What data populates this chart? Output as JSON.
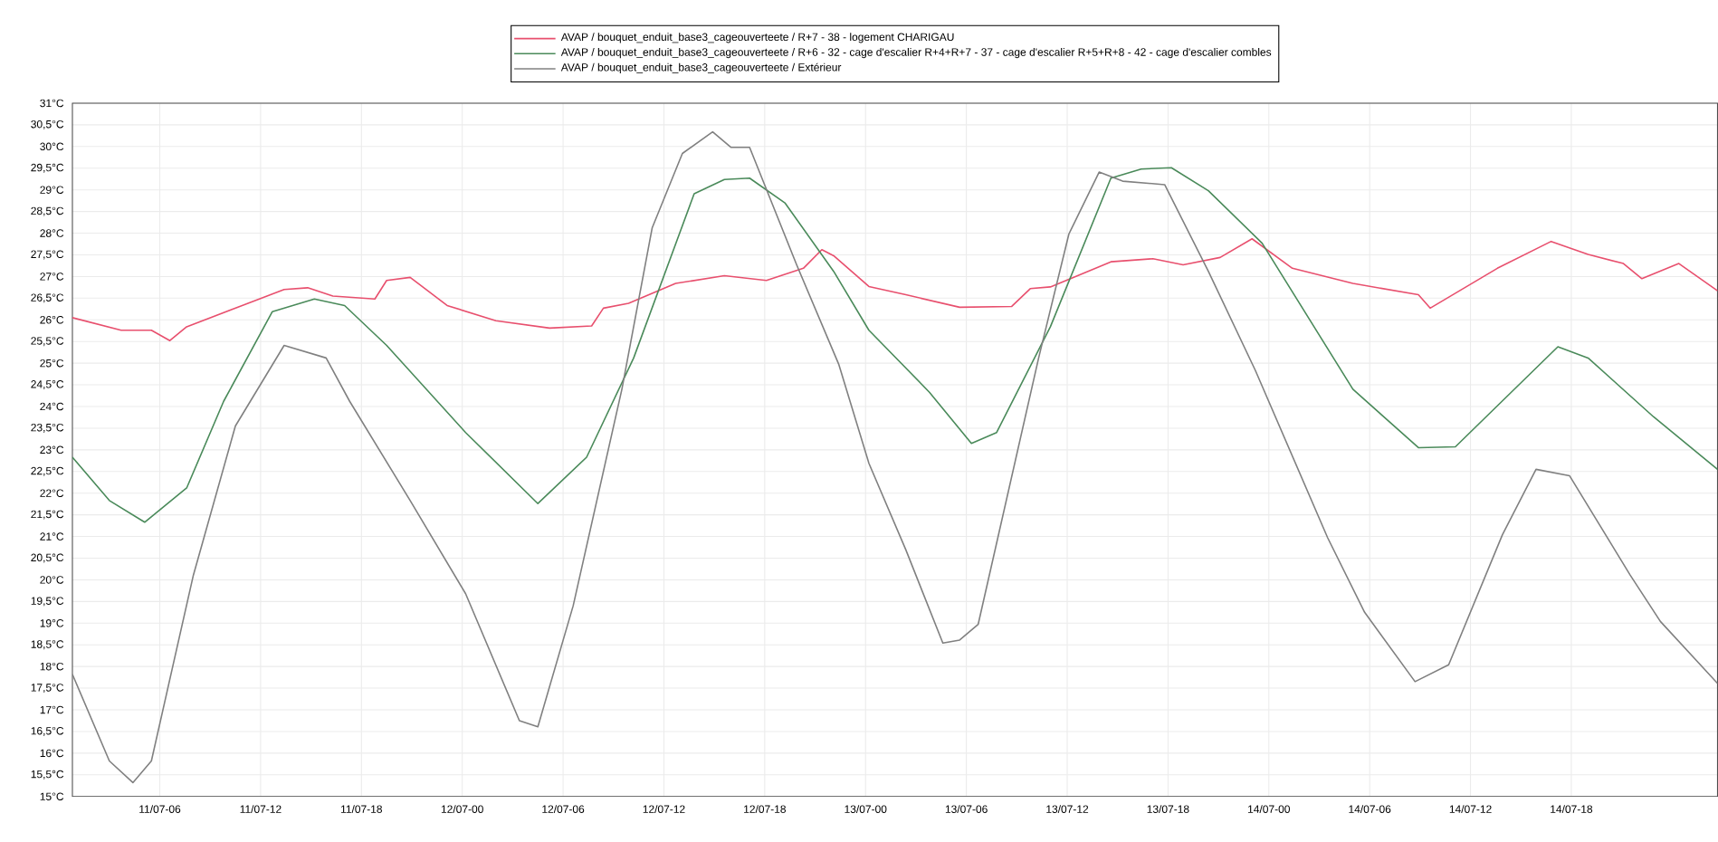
{
  "chart_data": {
    "type": "line",
    "xlim": [
      "--07-11T00:48",
      "--07-15T02:42"
    ],
    "ylim": [
      15,
      31
    ],
    "xticks": [
      {
        "value": "--07-11T06:00",
        "label": "11/07-06"
      },
      {
        "value": "--07-11T12:00",
        "label": "11/07-12"
      },
      {
        "value": "--07-11T18:00",
        "label": "11/07-18"
      },
      {
        "value": "--07-12T00:00",
        "label": "12/07-00"
      },
      {
        "value": "--07-12T06:00",
        "label": "12/07-06"
      },
      {
        "value": "--07-12T12:00",
        "label": "12/07-12"
      },
      {
        "value": "--07-12T18:00",
        "label": "12/07-18"
      },
      {
        "value": "--07-13T00:00",
        "label": "13/07-00"
      },
      {
        "value": "--07-13T06:00",
        "label": "13/07-06"
      },
      {
        "value": "--07-13T12:00",
        "label": "13/07-12"
      },
      {
        "value": "--07-13T18:00",
        "label": "13/07-18"
      },
      {
        "value": "--07-14T00:00",
        "label": "14/07-00"
      },
      {
        "value": "--07-14T06:00",
        "label": "14/07-06"
      },
      {
        "value": "--07-14T12:00",
        "label": "14/07-12"
      },
      {
        "value": "--07-14T18:00",
        "label": "14/07-18"
      }
    ],
    "yticks": [
      {
        "value": 15,
        "label": "15°C"
      },
      {
        "value": 15.5,
        "label": "15,5°C"
      },
      {
        "value": 16,
        "label": "16°C"
      },
      {
        "value": 16.5,
        "label": "16,5°C"
      },
      {
        "value": 17,
        "label": "17°C"
      },
      {
        "value": 17.5,
        "label": "17,5°C"
      },
      {
        "value": 18,
        "label": "18°C"
      },
      {
        "value": 18.5,
        "label": "18,5°C"
      },
      {
        "value": 19,
        "label": "19°C"
      },
      {
        "value": 19.5,
        "label": "19,5°C"
      },
      {
        "value": 20,
        "label": "20°C"
      },
      {
        "value": 20.5,
        "label": "20,5°C"
      },
      {
        "value": 21,
        "label": "21°C"
      },
      {
        "value": 21.5,
        "label": "21,5°C"
      },
      {
        "value": 22,
        "label": "22°C"
      },
      {
        "value": 22.5,
        "label": "22,5°C"
      },
      {
        "value": 23,
        "label": "23°C"
      },
      {
        "value": 23.5,
        "label": "23,5°C"
      },
      {
        "value": 24,
        "label": "24°C"
      },
      {
        "value": 24.5,
        "label": "24,5°C"
      },
      {
        "value": 25,
        "label": "25°C"
      },
      {
        "value": 25.5,
        "label": "25,5°C"
      },
      {
        "value": 26,
        "label": "26°C"
      },
      {
        "value": 26.5,
        "label": "26,5°C"
      },
      {
        "value": 27,
        "label": "27°C"
      },
      {
        "value": 27.5,
        "label": "27,5°C"
      },
      {
        "value": 28,
        "label": "28°C"
      },
      {
        "value": 28.5,
        "label": "28,5°C"
      },
      {
        "value": 29,
        "label": "29°C"
      },
      {
        "value": 29.5,
        "label": "29,5°C"
      },
      {
        "value": 30,
        "label": "30°C"
      },
      {
        "value": 30.5,
        "label": "30,5°C"
      },
      {
        "value": 31,
        "label": "31°C"
      }
    ],
    "grid": true,
    "legend": "top",
    "marker": "none",
    "line_style": "solid",
    "series": [
      {
        "name": "AVAP / bouquet_enduit_base3_cageouverteete / R+7 - 38 - logement CHARIGAU",
        "color": "#e8506e",
        "x": [
          "--07-11T00:48",
          "--07-11T03:42",
          "--07-11T05:30",
          "--07-11T06:36",
          "--07-11T07:36",
          "--07-11T10:54",
          "--07-11T13:24",
          "--07-11T14:48",
          "--07-11T16:18",
          "--07-11T18:48",
          "--07-11T19:30",
          "--07-11T20:54",
          "--07-11T23:06",
          "--07-12T02:00",
          "--07-12T05:12",
          "--07-12T07:42",
          "--07-12T08:24",
          "--07-12T09:54",
          "--07-12T12:42",
          "--07-12T15:36",
          "--07-12T18:06",
          "--07-12T20:18",
          "--07-12T21:24",
          "--07-12T22:06",
          "--07-13T00:12",
          "--07-13T02:24",
          "--07-13T05:36",
          "--07-13T08:42",
          "--07-13T09:48",
          "--07-13T11:00",
          "--07-13T14:36",
          "--07-13T17:06",
          "--07-13T18:54",
          "--07-13T21:06",
          "--07-13T23:00",
          "--07-14T01:24",
          "--07-14T05:00",
          "--07-14T08:54",
          "--07-14T09:36",
          "--07-14T13:36",
          "--07-14T16:48",
          "--07-14T19:00",
          "--07-14T21:06",
          "--07-14T22:12",
          "--07-15T00:24",
          "--07-15T02:42"
        ],
        "values": [
          26.05,
          25.76,
          25.76,
          25.52,
          25.84,
          26.33,
          26.7,
          26.74,
          26.55,
          26.48,
          26.91,
          26.98,
          26.33,
          25.98,
          25.81,
          25.86,
          26.27,
          26.38,
          26.84,
          27.02,
          26.91,
          27.19,
          27.62,
          27.48,
          26.77,
          26.58,
          26.29,
          26.31,
          26.72,
          26.76,
          27.34,
          27.41,
          27.27,
          27.44,
          27.87,
          27.19,
          26.84,
          26.58,
          26.27,
          27.19,
          27.81,
          27.51,
          27.3,
          26.95,
          27.3,
          26.67
        ]
      },
      {
        "name": "AVAP / bouquet_enduit_base3_cageouverteete / R+6 - 32 - cage d'escalier R+4+R+7 - 37 - cage d'escalier R+5+R+8 - 42 - cage d'escalier combles",
        "color": "#4a8a5a",
        "x": [
          "--07-11T00:48",
          "--07-11T03:00",
          "--07-11T05:06",
          "--07-11T07:36",
          "--07-11T09:48",
          "--07-11T12:42",
          "--07-11T15:12",
          "--07-11T17:00",
          "--07-11T19:30",
          "--07-12T00:12",
          "--07-12T04:30",
          "--07-12T07:24",
          "--07-12T10:12",
          "--07-12T13:48",
          "--07-12T15:36",
          "--07-12T17:06",
          "--07-12T19:12",
          "--07-12T22:06",
          "--07-13T00:12",
          "--07-13T03:48",
          "--07-13T06:18",
          "--07-13T07:48",
          "--07-13T11:00",
          "--07-13T14:36",
          "--07-13T16:24",
          "--07-13T18:12",
          "--07-13T20:24",
          "--07-13T23:36",
          "--07-14T05:00",
          "--07-14T08:54",
          "--07-14T11:06",
          "--07-14T17:12",
          "--07-14T19:00",
          "--07-14T22:54",
          "--07-15T02:42"
        ],
        "values": [
          22.83,
          21.83,
          21.33,
          22.12,
          24.12,
          26.19,
          26.48,
          26.33,
          25.41,
          23.4,
          21.76,
          22.83,
          25.12,
          28.91,
          29.24,
          29.27,
          28.7,
          27.12,
          25.76,
          24.33,
          23.15,
          23.4,
          25.84,
          29.27,
          29.48,
          29.51,
          28.98,
          27.77,
          24.4,
          23.05,
          23.07,
          25.38,
          25.12,
          23.76,
          22.55
        ]
      },
      {
        "name": "AVAP / bouquet_enduit_base3_cageouverteete / Extérieur",
        "color": "#808080",
        "x": [
          "--07-11T00:48",
          "--07-11T03:00",
          "--07-11T04:24",
          "--07-11T05:30",
          "--07-11T08:00",
          "--07-11T10:30",
          "--07-11T13:24",
          "--07-11T15:54",
          "--07-11T17:18",
          "--07-11T20:54",
          "--07-12T00:12",
          "--07-12T03:24",
          "--07-12T04:30",
          "--07-12T06:36",
          "--07-12T09:30",
          "--07-12T11:18",
          "--07-12T13:06",
          "--07-12T14:54",
          "--07-12T16:00",
          "--07-12T17:06",
          "--07-12T19:54",
          "--07-12T22:24",
          "--07-13T00:12",
          "--07-13T02:24",
          "--07-13T04:36",
          "--07-13T05:36",
          "--07-13T06:42",
          "--07-13T10:18",
          "--07-13T12:06",
          "--07-13T13:54",
          "--07-13T15:18",
          "--07-13T17:48",
          "--07-13T20:24",
          "--07-13T23:12",
          "--07-14T03:30",
          "--07-14T05:42",
          "--07-14T08:42",
          "--07-14T10:42",
          "--07-14T13:54",
          "--07-14T15:54",
          "--07-14T17:54",
          "--07-14T21:30",
          "--07-14T23:18",
          "--07-15T02:42"
        ],
        "values": [
          17.82,
          15.82,
          15.32,
          15.82,
          20.11,
          23.55,
          25.41,
          25.12,
          24.12,
          21.83,
          19.68,
          16.75,
          16.61,
          19.4,
          24.4,
          28.12,
          29.84,
          30.34,
          29.98,
          29.98,
          27.27,
          24.98,
          22.69,
          20.69,
          18.54,
          18.61,
          18.97,
          25.12,
          27.98,
          29.41,
          29.2,
          29.12,
          27.12,
          24.83,
          20.97,
          19.25,
          17.65,
          18.04,
          21.04,
          22.55,
          22.4,
          20.11,
          19.04,
          17.61
        ]
      }
    ]
  }
}
